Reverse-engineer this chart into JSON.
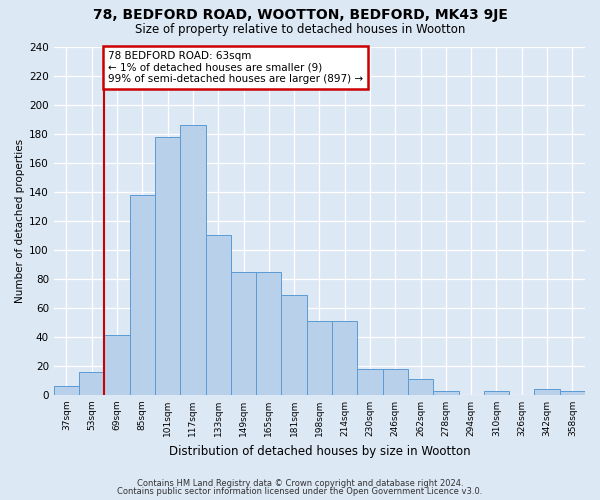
{
  "title": "78, BEDFORD ROAD, WOOTTON, BEDFORD, MK43 9JE",
  "subtitle": "Size of property relative to detached houses in Wootton",
  "xlabel": "Distribution of detached houses by size in Wootton",
  "ylabel": "Number of detached properties",
  "categories": [
    "37sqm",
    "53sqm",
    "69sqm",
    "85sqm",
    "101sqm",
    "117sqm",
    "133sqm",
    "149sqm",
    "165sqm",
    "181sqm",
    "198sqm",
    "214sqm",
    "230sqm",
    "246sqm",
    "262sqm",
    "278sqm",
    "294sqm",
    "310sqm",
    "326sqm",
    "342sqm",
    "358sqm"
  ],
  "values": [
    6,
    16,
    41,
    138,
    178,
    186,
    110,
    85,
    85,
    69,
    51,
    51,
    18,
    18,
    11,
    3,
    0,
    3,
    0,
    4,
    3
  ],
  "bar_color": "#b8d0ea",
  "bar_edge_color": "#5b9bd5",
  "annotation_text": "78 BEDFORD ROAD: 63sqm\n← 1% of detached houses are smaller (9)\n99% of semi-detached houses are larger (897) →",
  "annotation_box_facecolor": "#ffffff",
  "annotation_box_edgecolor": "#cc0000",
  "ylim_max": 240,
  "yticks": [
    0,
    20,
    40,
    60,
    80,
    100,
    120,
    140,
    160,
    180,
    200,
    220,
    240
  ],
  "vline_color": "#cc0000",
  "vline_x": 1.5,
  "background_color": "#dde8f5",
  "grid_color": "#ffffff",
  "footer_line1": "Contains HM Land Registry data © Crown copyright and database right 2024.",
  "footer_line2": "Contains public sector information licensed under the Open Government Licence v3.0."
}
